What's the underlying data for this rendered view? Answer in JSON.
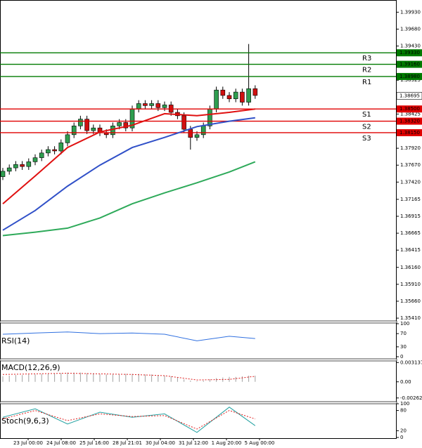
{
  "chart_data": [
    {
      "type": "candlestick",
      "open": [
        1.375,
        1.3758,
        1.3763,
        1.3768,
        1.3765,
        1.3772,
        1.3778,
        1.3785,
        1.379,
        1.3788,
        1.38,
        1.3812,
        1.3825,
        1.3835,
        1.3818,
        1.3822,
        1.3815,
        1.3812,
        1.3825,
        1.383,
        1.3822,
        1.385,
        1.3858,
        1.3855,
        1.3858,
        1.3852,
        1.3856,
        1.3845,
        1.384,
        1.382,
        1.3808,
        1.3812,
        1.3825,
        1.385,
        1.3878,
        1.387,
        1.3865,
        1.3875,
        1.386,
        1.388
      ],
      "high": [
        1.3763,
        1.3768,
        1.3773,
        1.3773,
        1.3777,
        1.3783,
        1.379,
        1.3795,
        1.3795,
        1.3805,
        1.3817,
        1.383,
        1.384,
        1.384,
        1.3827,
        1.3827,
        1.382,
        1.383,
        1.3835,
        1.3835,
        1.3855,
        1.3863,
        1.3863,
        1.3863,
        1.3863,
        1.3861,
        1.3861,
        1.385,
        1.3845,
        1.3825,
        1.3817,
        1.383,
        1.3855,
        1.3883,
        1.3883,
        1.3875,
        1.388,
        1.388,
        1.3946,
        1.3885
      ],
      "low": [
        1.3745,
        1.3753,
        1.3758,
        1.376,
        1.376,
        1.3767,
        1.3773,
        1.378,
        1.3783,
        1.3783,
        1.3795,
        1.3807,
        1.382,
        1.3813,
        1.3813,
        1.381,
        1.3807,
        1.3807,
        1.382,
        1.3817,
        1.3817,
        1.3845,
        1.385,
        1.385,
        1.3847,
        1.3847,
        1.384,
        1.3835,
        1.3815,
        1.379,
        1.3803,
        1.3807,
        1.382,
        1.3845,
        1.3865,
        1.386,
        1.386,
        1.3855,
        1.3855,
        1.3865
      ],
      "close": [
        1.3758,
        1.3763,
        1.3768,
        1.3765,
        1.3772,
        1.3778,
        1.3785,
        1.379,
        1.3788,
        1.38,
        1.3812,
        1.3825,
        1.3835,
        1.3818,
        1.3822,
        1.3815,
        1.3812,
        1.3825,
        1.383,
        1.3822,
        1.385,
        1.3858,
        1.3855,
        1.3858,
        1.3852,
        1.3856,
        1.3845,
        1.384,
        1.382,
        1.3808,
        1.3812,
        1.3825,
        1.385,
        1.3878,
        1.387,
        1.3865,
        1.3875,
        1.386,
        1.388,
        1.387
      ],
      "up_color": "#2e9e4f",
      "down_color": "#d01010",
      "series": [
        {
          "color": "#e01010",
          "x": [
            0,
            5,
            10,
            15,
            20,
            25,
            30,
            35,
            39
          ],
          "values": [
            1.371,
            1.3751,
            1.3793,
            1.3816,
            1.3826,
            1.3843,
            1.384,
            1.3845,
            1.385
          ]
        },
        {
          "color": "#3050c8",
          "x": [
            0,
            5,
            10,
            15,
            20,
            25,
            30,
            35,
            39
          ],
          "values": [
            1.3671,
            1.37,
            1.3736,
            1.3767,
            1.3793,
            1.3808,
            1.3824,
            1.3832,
            1.3837
          ]
        },
        {
          "color": "#2eaa5a",
          "x": [
            0,
            5,
            10,
            15,
            20,
            25,
            30,
            35,
            39
          ],
          "values": [
            1.3663,
            1.3668,
            1.3674,
            1.3689,
            1.371,
            1.3726,
            1.3741,
            1.3757,
            1.3772
          ]
        }
      ],
      "levels": [
        {
          "name": "R3",
          "value": 1.3933,
          "label": "1.39330",
          "color": "#007a00"
        },
        {
          "name": "R2",
          "value": 1.3916,
          "label": "1.39160",
          "color": "#007a00"
        },
        {
          "name": "R1",
          "value": 1.3898,
          "label": "1.38980",
          "color": "#007a00"
        },
        {
          "name": "S1",
          "value": 1.385,
          "label": "1.38500",
          "color": "#e00000"
        },
        {
          "name": "S2",
          "value": 1.3832,
          "label": "1.38320",
          "color": "#e00000"
        },
        {
          "name": "S3",
          "value": 1.3815,
          "label": "1.38150",
          "color": "#e00000"
        }
      ],
      "last_price": {
        "value": 1.38695,
        "label": "1.38695"
      },
      "ylim": [
        1.3539,
        1.4011
      ],
      "yticks": [
        {
          "value": 1.3993,
          "label": "1.39930"
        },
        {
          "value": 1.3968,
          "label": "1.39680"
        },
        {
          "value": 1.3943,
          "label": "1.39430"
        },
        {
          "value": 1.38925,
          "label": "1.38925"
        },
        {
          "value": 1.38425,
          "label": "1.38425"
        },
        {
          "value": 1.3792,
          "label": "1.37920"
        },
        {
          "value": 1.3767,
          "label": "1.37670"
        },
        {
          "value": 1.3742,
          "label": "1.37420"
        },
        {
          "value": 1.37165,
          "label": "1.37165"
        },
        {
          "value": 1.36915,
          "label": "1.36915"
        },
        {
          "value": 1.36665,
          "label": "1.36665"
        },
        {
          "value": 1.36415,
          "label": "1.36415"
        },
        {
          "value": 1.3616,
          "label": "1.36160"
        },
        {
          "value": 1.3591,
          "label": "1.35910"
        },
        {
          "value": 1.3566,
          "label": "1.35660"
        },
        {
          "value": 1.3541,
          "label": "1.35410"
        }
      ],
      "x_labels": [
        "23 Jul 00:00",
        "24 Jul 08:00",
        "25 Jul 16:00",
        "28 Jul 21:01",
        "30 Jul 04:00",
        "31 Jul 12:00",
        "1 Aug 20:00",
        "5 Aug 00:00"
      ]
    },
    {
      "type": "line",
      "title": "RSI(14)",
      "ylim": [
        0,
        100
      ],
      "yticks": [
        100,
        70,
        30,
        0
      ],
      "series": [
        {
          "color": "#3070e0",
          "x": [
            0,
            5,
            10,
            15,
            20,
            25,
            30,
            35,
            39
          ],
          "values": [
            68,
            72,
            75,
            70,
            72,
            68,
            48,
            62,
            55
          ]
        }
      ]
    },
    {
      "type": "macd",
      "title": "MACD(12,26,9)",
      "ylim": [
        -0.003,
        0.0034
      ],
      "yticks": [
        {
          "value": 0.003137,
          "label": "0.003137"
        },
        {
          "value": 0,
          "label": "0.00"
        },
        {
          "value": -0.002629,
          "label": "-0.002629"
        }
      ],
      "histogram": [
        0.0009,
        0.001,
        0.0011,
        0.0011,
        0.0012,
        0.0012,
        0.0013,
        0.0013,
        0.0014,
        0.0014,
        0.0015,
        0.0015,
        0.0015,
        0.0014,
        0.0014,
        0.0013,
        0.0012,
        0.0012,
        0.0012,
        0.0013,
        0.0013,
        0.0013,
        0.0012,
        0.0012,
        0.0011,
        0.001,
        0.0009,
        0.0007,
        0.0004,
        0.0002,
        0.0001,
        0.0002,
        0.0004,
        0.0006,
        0.0007,
        0.0008,
        0.0008,
        0.0009,
        0.001,
        0.001
      ],
      "histogram_color": "#a0a0a0",
      "series": [
        {
          "color": "#e02020",
          "style": "dashed",
          "x": [
            0,
            5,
            10,
            15,
            20,
            25,
            30,
            35,
            39
          ],
          "values": [
            0.0012,
            0.0013,
            0.0014,
            0.0013,
            0.0012,
            0.001,
            0.0003,
            0.0004,
            0.0009
          ]
        }
      ]
    },
    {
      "type": "line",
      "title": "Stoch(9,6,3)",
      "ylim": [
        0,
        100
      ],
      "yticks": [
        100,
        80,
        20,
        0
      ],
      "series": [
        {
          "color": "#20a0a0",
          "x": [
            0,
            5,
            10,
            15,
            20,
            25,
            30,
            35,
            39
          ],
          "values": [
            60,
            85,
            40,
            75,
            60,
            70,
            15,
            90,
            35
          ]
        },
        {
          "color": "#e02020",
          "style": "dashed",
          "x": [
            0,
            5,
            10,
            15,
            20,
            25,
            30,
            35,
            39
          ],
          "values": [
            55,
            80,
            50,
            70,
            62,
            65,
            25,
            80,
            55
          ]
        }
      ]
    }
  ]
}
